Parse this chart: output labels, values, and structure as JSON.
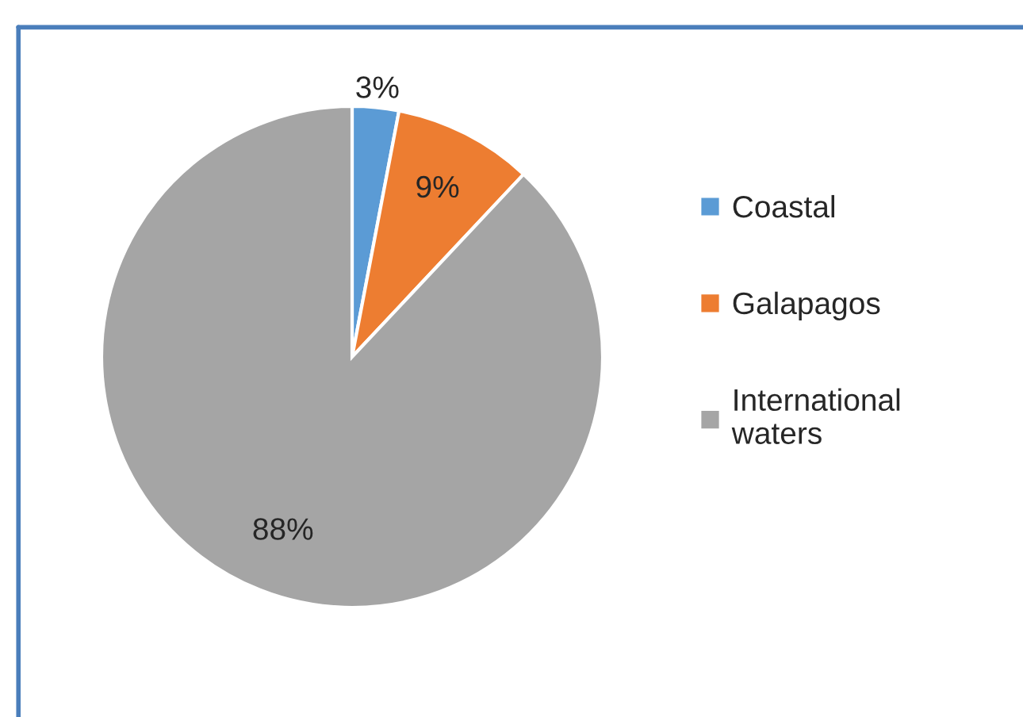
{
  "chart_data": {
    "type": "pie",
    "categories": [
      "Coastal",
      "Galapagos",
      "International waters"
    ],
    "values": [
      3,
      9,
      88
    ],
    "colors": [
      "#5b9bd5",
      "#ed7d31",
      "#a5a5a5"
    ],
    "value_labels": [
      "3%",
      "9%",
      "88%"
    ],
    "legend": "right"
  }
}
